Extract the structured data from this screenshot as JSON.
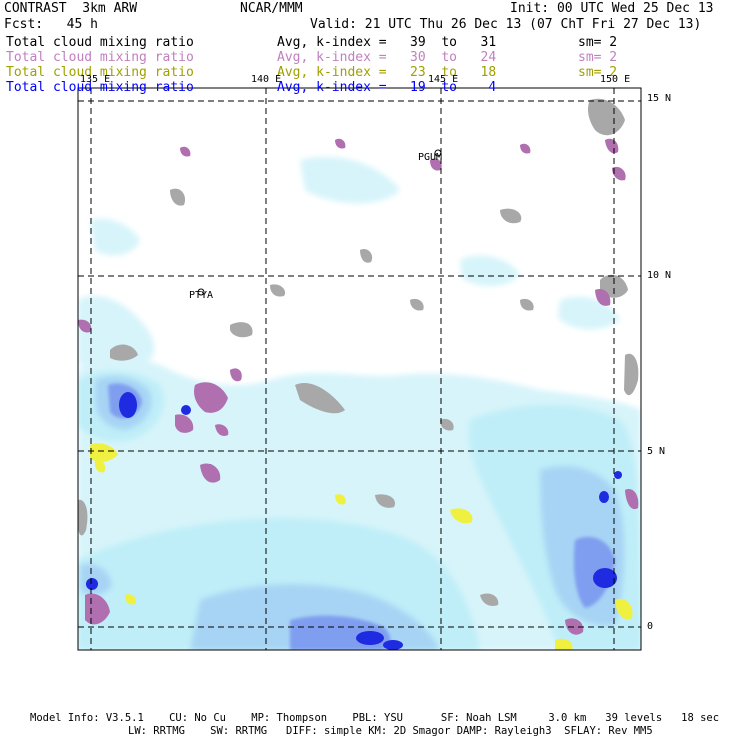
{
  "header": {
    "left_title": "CONTRAST  3km ARW",
    "center_title": "NCAR/MMM",
    "init": "Init: 00 UTC Wed 25 Dec 13",
    "fcst": "Fcst:   45 h",
    "valid": "Valid: 21 UTC Thu 26 Dec 13 (07 ChT Fri 27 Dec 13)"
  },
  "fields": [
    {
      "name": "Total cloud mixing ratio",
      "stat": "Avg, k-index =   39  to   31",
      "sm": "sm= 2",
      "color": "#000000"
    },
    {
      "name": "Total cloud mixing ratio",
      "stat": "Avg, k-index =   30  to   24",
      "sm": "sm= 2",
      "color": "#c080c0"
    },
    {
      "name": "Total cloud mixing ratio",
      "stat": "Avg, k-index =   23  to   18",
      "sm": "sm= 2",
      "color": "#a0a000"
    },
    {
      "name": "Total cloud mixing ratio",
      "stat": "Avg, k-index =   19  to    4",
      "sm": "",
      "color": "#0000ff"
    }
  ],
  "map": {
    "lon_labels": [
      "135 E",
      "140 E",
      "145 E",
      "150 E"
    ],
    "lat_labels": [
      "15 N",
      "10 N",
      "5 N",
      "0"
    ],
    "stations": [
      "PGUM",
      "PTYA"
    ]
  },
  "footer": {
    "line1": "Model Info: V3.5.1    CU: No Cu    MP: Thompson    PBL: YSU      SF: Noah LSM     3.0 km   39 levels   18 sec",
    "line2": "LW: RRTMG    SW: RRTMG   DIFF: simple KM: 2D Smagor DAMP: Rayleigh3  SFLAY: Rev MM5"
  }
}
